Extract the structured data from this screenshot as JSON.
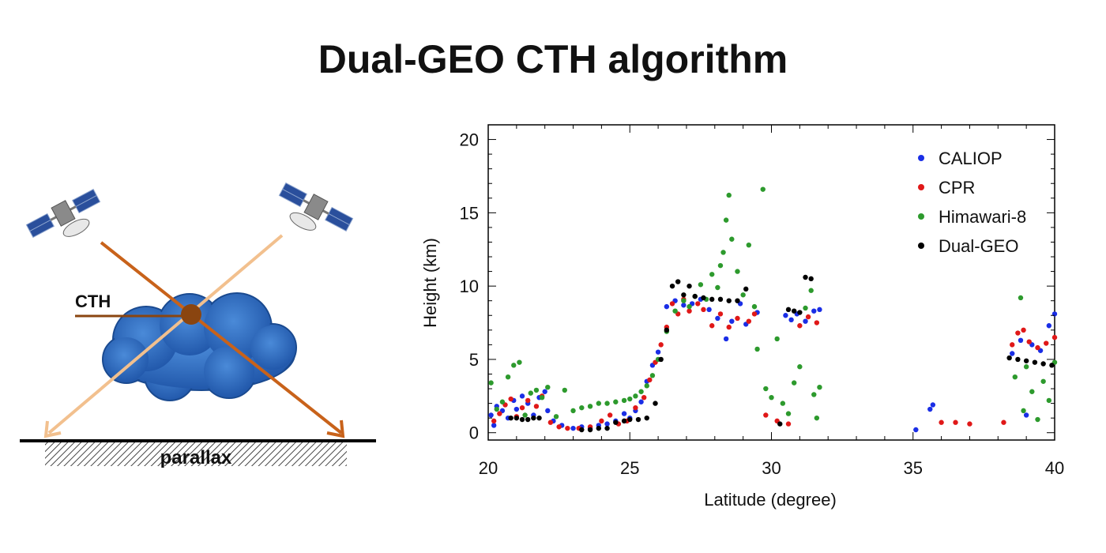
{
  "title": "Dual-GEO CTH algorithm",
  "diagram": {
    "cth_label": "CTH",
    "parallax_label": "parallax",
    "colors": {
      "ray_dark": "#c8621a",
      "ray_light": "#f2c08e",
      "cloud": "#2f6fc4",
      "cloud_point": "#8a4510",
      "ground": "#000000"
    }
  },
  "chart_data": {
    "type": "scatter",
    "xlabel": "Latitude (degree)",
    "ylabel": "Height (km)",
    "xlim": [
      20,
      40
    ],
    "ylim": [
      -0.5,
      21
    ],
    "xticks": [
      20,
      25,
      30,
      35,
      40
    ],
    "yticks": [
      0,
      5,
      10,
      15,
      20
    ],
    "legend_position": "top-right",
    "grid": false,
    "series": [
      {
        "name": "CALIOP",
        "color": "#1a2ee6",
        "points": [
          [
            20.1,
            1.2
          ],
          [
            20.2,
            0.5
          ],
          [
            20.3,
            1.8
          ],
          [
            20.5,
            1.5
          ],
          [
            20.7,
            1.0
          ],
          [
            20.9,
            2.2
          ],
          [
            21.0,
            1.6
          ],
          [
            21.2,
            2.5
          ],
          [
            21.4,
            2.0
          ],
          [
            21.6,
            1.2
          ],
          [
            21.8,
            2.4
          ],
          [
            22.0,
            2.8
          ],
          [
            22.1,
            1.5
          ],
          [
            22.3,
            0.8
          ],
          [
            22.6,
            0.5
          ],
          [
            23.0,
            0.3
          ],
          [
            23.3,
            0.4
          ],
          [
            23.6,
            0.3
          ],
          [
            23.9,
            0.5
          ],
          [
            24.2,
            0.6
          ],
          [
            24.5,
            0.8
          ],
          [
            24.8,
            1.3
          ],
          [
            25.0,
            1.0
          ],
          [
            25.2,
            1.5
          ],
          [
            25.4,
            2.1
          ],
          [
            25.6,
            3.5
          ],
          [
            25.8,
            4.6
          ],
          [
            26.0,
            5.5
          ],
          [
            26.3,
            8.6
          ],
          [
            26.6,
            9.0
          ],
          [
            26.9,
            8.7
          ],
          [
            27.2,
            8.8
          ],
          [
            27.5,
            9.1
          ],
          [
            27.8,
            8.4
          ],
          [
            28.1,
            7.8
          ],
          [
            28.4,
            6.4
          ],
          [
            28.6,
            7.6
          ],
          [
            28.9,
            8.8
          ],
          [
            29.1,
            7.4
          ],
          [
            29.5,
            8.2
          ],
          [
            30.5,
            8.0
          ],
          [
            30.7,
            7.7
          ],
          [
            30.9,
            8.1
          ],
          [
            31.2,
            7.6
          ],
          [
            31.5,
            8.3
          ],
          [
            31.7,
            8.4
          ],
          [
            35.1,
            0.2
          ],
          [
            35.6,
            1.6
          ],
          [
            35.7,
            1.9
          ],
          [
            38.5,
            5.4
          ],
          [
            38.8,
            6.3
          ],
          [
            39.0,
            1.2
          ],
          [
            39.2,
            6.0
          ],
          [
            39.5,
            5.6
          ],
          [
            39.8,
            7.3
          ],
          [
            40.0,
            8.1
          ]
        ]
      },
      {
        "name": "CPR",
        "color": "#e01818",
        "points": [
          [
            20.2,
            0.8
          ],
          [
            20.4,
            1.3
          ],
          [
            20.6,
            1.9
          ],
          [
            20.8,
            2.3
          ],
          [
            21.0,
            1.1
          ],
          [
            21.2,
            1.7
          ],
          [
            21.4,
            2.2
          ],
          [
            21.7,
            1.8
          ],
          [
            21.9,
            2.5
          ],
          [
            22.2,
            0.7
          ],
          [
            22.5,
            0.4
          ],
          [
            22.8,
            0.3
          ],
          [
            23.2,
            0.3
          ],
          [
            23.6,
            0.4
          ],
          [
            24.0,
            0.8
          ],
          [
            24.3,
            1.2
          ],
          [
            24.6,
            0.6
          ],
          [
            24.9,
            0.8
          ],
          [
            25.2,
            1.7
          ],
          [
            25.5,
            2.4
          ],
          [
            25.7,
            3.6
          ],
          [
            25.9,
            4.8
          ],
          [
            26.1,
            6.0
          ],
          [
            26.3,
            7.2
          ],
          [
            26.5,
            8.8
          ],
          [
            26.7,
            8.1
          ],
          [
            26.9,
            9.1
          ],
          [
            27.1,
            8.3
          ],
          [
            27.4,
            8.8
          ],
          [
            27.6,
            8.4
          ],
          [
            27.9,
            7.3
          ],
          [
            28.2,
            8.1
          ],
          [
            28.5,
            7.2
          ],
          [
            28.8,
            7.8
          ],
          [
            29.2,
            7.6
          ],
          [
            29.4,
            8.1
          ],
          [
            29.8,
            1.2
          ],
          [
            30.2,
            0.8
          ],
          [
            30.6,
            0.6
          ],
          [
            31.0,
            7.3
          ],
          [
            31.3,
            7.9
          ],
          [
            31.6,
            7.5
          ],
          [
            36.0,
            0.7
          ],
          [
            36.5,
            0.7
          ],
          [
            37.0,
            0.6
          ],
          [
            38.2,
            0.7
          ],
          [
            38.5,
            6.0
          ],
          [
            38.7,
            6.8
          ],
          [
            38.9,
            7.0
          ],
          [
            39.1,
            6.2
          ],
          [
            39.4,
            5.8
          ],
          [
            39.7,
            6.1
          ],
          [
            40.0,
            6.5
          ]
        ]
      },
      {
        "name": "Himawari-8",
        "color": "#2d9a2d",
        "points": [
          [
            20.1,
            3.4
          ],
          [
            20.3,
            1.6
          ],
          [
            20.5,
            2.1
          ],
          [
            20.7,
            3.8
          ],
          [
            20.9,
            4.6
          ],
          [
            21.1,
            4.8
          ],
          [
            21.3,
            1.2
          ],
          [
            21.5,
            2.7
          ],
          [
            21.7,
            2.9
          ],
          [
            21.9,
            2.4
          ],
          [
            22.1,
            3.1
          ],
          [
            22.4,
            1.1
          ],
          [
            22.7,
            2.9
          ],
          [
            23.0,
            1.5
          ],
          [
            23.3,
            1.7
          ],
          [
            23.6,
            1.8
          ],
          [
            23.9,
            2.0
          ],
          [
            24.2,
            2.0
          ],
          [
            24.5,
            2.1
          ],
          [
            24.8,
            2.2
          ],
          [
            25.0,
            2.3
          ],
          [
            25.2,
            2.5
          ],
          [
            25.4,
            2.8
          ],
          [
            25.6,
            3.2
          ],
          [
            25.8,
            3.9
          ],
          [
            26.0,
            5.0
          ],
          [
            26.3,
            6.9
          ],
          [
            26.6,
            8.3
          ],
          [
            26.9,
            9.0
          ],
          [
            27.1,
            8.6
          ],
          [
            27.3,
            9.3
          ],
          [
            27.5,
            10.1
          ],
          [
            27.7,
            9.1
          ],
          [
            27.9,
            10.8
          ],
          [
            28.1,
            9.9
          ],
          [
            28.2,
            11.4
          ],
          [
            28.3,
            12.3
          ],
          [
            28.4,
            14.5
          ],
          [
            28.5,
            16.2
          ],
          [
            28.6,
            13.2
          ],
          [
            28.8,
            11.0
          ],
          [
            29.0,
            9.4
          ],
          [
            29.2,
            12.8
          ],
          [
            29.4,
            8.6
          ],
          [
            29.5,
            5.7
          ],
          [
            29.7,
            16.6
          ],
          [
            29.8,
            3.0
          ],
          [
            30.0,
            2.4
          ],
          [
            30.2,
            6.4
          ],
          [
            30.4,
            2.0
          ],
          [
            30.6,
            1.3
          ],
          [
            30.8,
            3.4
          ],
          [
            31.0,
            4.5
          ],
          [
            31.2,
            8.5
          ],
          [
            31.4,
            9.7
          ],
          [
            31.5,
            2.6
          ],
          [
            31.6,
            1.0
          ],
          [
            31.7,
            3.1
          ],
          [
            38.6,
            3.8
          ],
          [
            38.8,
            9.2
          ],
          [
            38.9,
            1.5
          ],
          [
            39.0,
            4.5
          ],
          [
            39.2,
            2.8
          ],
          [
            39.4,
            0.9
          ],
          [
            39.6,
            3.5
          ],
          [
            39.8,
            2.2
          ],
          [
            40.0,
            4.8
          ]
        ]
      },
      {
        "name": "Dual-GEO",
        "color": "#000000",
        "points": [
          [
            20.8,
            1.0
          ],
          [
            21.0,
            1.0
          ],
          [
            21.2,
            0.9
          ],
          [
            21.4,
            0.9
          ],
          [
            21.6,
            1.0
          ],
          [
            21.8,
            1.0
          ],
          [
            23.3,
            0.2
          ],
          [
            23.6,
            0.2
          ],
          [
            23.9,
            0.3
          ],
          [
            24.2,
            0.3
          ],
          [
            24.5,
            0.7
          ],
          [
            24.8,
            0.8
          ],
          [
            25.0,
            0.9
          ],
          [
            25.3,
            0.9
          ],
          [
            25.6,
            1.0
          ],
          [
            25.9,
            2.0
          ],
          [
            26.1,
            5.0
          ],
          [
            26.3,
            7.0
          ],
          [
            26.5,
            10.0
          ],
          [
            26.7,
            10.3
          ],
          [
            26.9,
            9.4
          ],
          [
            27.1,
            10.0
          ],
          [
            27.3,
            9.3
          ],
          [
            27.6,
            9.2
          ],
          [
            27.9,
            9.1
          ],
          [
            28.2,
            9.1
          ],
          [
            28.5,
            9.0
          ],
          [
            28.8,
            9.0
          ],
          [
            29.1,
            9.8
          ],
          [
            30.3,
            0.6
          ],
          [
            30.6,
            8.4
          ],
          [
            30.8,
            8.3
          ],
          [
            31.0,
            8.2
          ],
          [
            31.2,
            10.6
          ],
          [
            31.4,
            10.5
          ],
          [
            38.4,
            5.1
          ],
          [
            38.7,
            5.0
          ],
          [
            39.0,
            4.9
          ],
          [
            39.3,
            4.8
          ],
          [
            39.6,
            4.7
          ],
          [
            39.9,
            4.6
          ]
        ]
      }
    ]
  }
}
